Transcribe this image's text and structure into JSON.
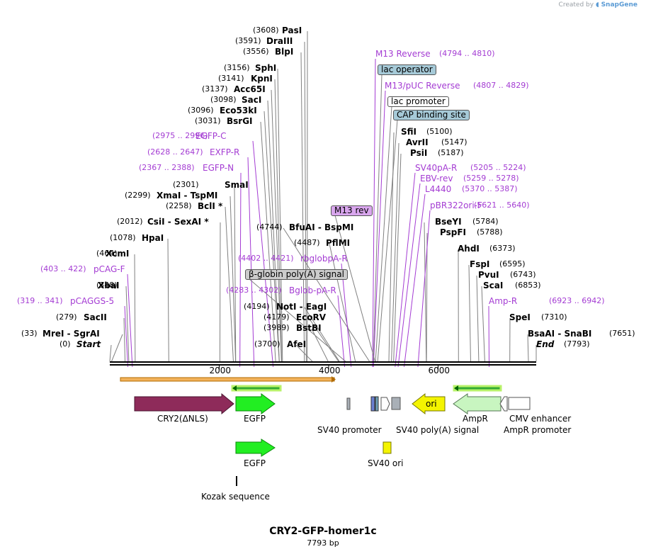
{
  "credit": {
    "prefix": "Created by",
    "brand": "SnapGene"
  },
  "map": {
    "title": "CRY2-GFP-homer1c",
    "length_label": "7793 bp",
    "length_bp": 7793,
    "ticks": [
      "2000",
      "4000",
      "6000"
    ],
    "colors": {
      "enzyme": "#000000",
      "primer": "#a43cd3",
      "cry2": "#8e2b5a",
      "egfp": "#22ee22",
      "ori": "#f4f400",
      "ampr": "#c8f5c0",
      "sv40ori": "#f4f400",
      "promoter_gray": "#a9b0b7",
      "lac_operator": "#a6cad8",
      "cap_site": "#a6cad8",
      "m13rev_badge": "#d9a6ee",
      "globin_badge": "#cccccc"
    }
  },
  "enzymes": [
    {
      "pos": "(3608)",
      "name": "PasI",
      "style": "b"
    },
    {
      "pos": "(3591)",
      "name": "DraIII",
      "style": "b"
    },
    {
      "pos": "(3556)",
      "name": "BlpI",
      "style": "b"
    },
    {
      "pos": "(3156)",
      "name": "SphI",
      "style": "b"
    },
    {
      "pos": "(3141)",
      "name": "KpnI",
      "style": "b"
    },
    {
      "pos": "(3137)",
      "name": "Acc65I",
      "style": "b"
    },
    {
      "pos": "(3098)",
      "name": "SacI",
      "style": "b"
    },
    {
      "pos": "(3096)",
      "name": "Eco53kI",
      "style": "b"
    },
    {
      "pos": "(3031)",
      "name": "BsrGI",
      "style": "b"
    },
    {
      "pos": "(2301)",
      "name": "SmaI",
      "style": "b"
    },
    {
      "pos": "(2299)",
      "name": "XmaI  -  TspMI",
      "style": "b"
    },
    {
      "pos": "(2258)",
      "name": "BclI *",
      "style": "b"
    },
    {
      "pos": "(2012)",
      "name": "CsiI  -  SexAI *",
      "style": "b"
    },
    {
      "pos": "(1078)",
      "name": "HpaI",
      "style": "b"
    },
    {
      "pos": "(464)",
      "name": "XcmI",
      "style": "b"
    },
    {
      "pos": "(348)",
      "name": "XbaI",
      "style": "b"
    },
    {
      "pos": "(279)",
      "name": "SacII",
      "style": "b"
    },
    {
      "pos": "(33)",
      "name": "MreI  -  SgrAI",
      "style": "b"
    },
    {
      "pos": "(0)",
      "name": "Start",
      "style": "bi"
    },
    {
      "pos": "(4744)",
      "name": "BfuAI  -  BspMI",
      "style": "b"
    },
    {
      "pos": "(4487)",
      "name": "PflMI",
      "style": "b"
    },
    {
      "pos": "(4194)",
      "name": "NotI  -  EagI",
      "style": "b"
    },
    {
      "pos": "(4179)",
      "name": "EcoRV",
      "style": "b"
    },
    {
      "pos": "(3989)",
      "name": "BstBI",
      "style": "b"
    },
    {
      "pos": "(3700)",
      "name": "AfeI",
      "style": "b"
    },
    {
      "pos": "(5100)",
      "name": "SfiI",
      "style": "b"
    },
    {
      "pos": "(5147)",
      "name": "AvrII",
      "style": "b"
    },
    {
      "pos": "(5187)",
      "name": "PsiI",
      "style": "b"
    },
    {
      "pos": "(5784)",
      "name": "BseYI",
      "style": "b"
    },
    {
      "pos": "(5788)",
      "name": "PspFI",
      "style": "b"
    },
    {
      "pos": "(6373)",
      "name": "AhdI",
      "style": "b"
    },
    {
      "pos": "(6595)",
      "name": "FspI",
      "style": "b"
    },
    {
      "pos": "(6743)",
      "name": "PvuI",
      "style": "b"
    },
    {
      "pos": "(6853)",
      "name": "ScaI",
      "style": "b"
    },
    {
      "pos": "(7310)",
      "name": "SpeI",
      "style": "b"
    },
    {
      "pos": "(7651)",
      "name": "BsaAI  -  SnaBI",
      "style": "b"
    },
    {
      "pos": "(7793)",
      "name": "End",
      "style": "bi"
    }
  ],
  "primers": [
    {
      "range": "(2975 .. 2996)",
      "name": "EGFP-C"
    },
    {
      "range": "(2628 .. 2647)",
      "name": "EXFP-R"
    },
    {
      "range": "(2367 .. 2388)",
      "name": "EGFP-N"
    },
    {
      "range": "(403 .. 422)",
      "name": "pCAG-F"
    },
    {
      "range": "(319 .. 341)",
      "name": "pCAGGS-5"
    },
    {
      "range": "(4402 .. 4421)",
      "name": "rbglobpA-R"
    },
    {
      "range": "(4283 .. 4302)",
      "name": "Bglob-pA-R"
    },
    {
      "range": "(4794 .. 4810)",
      "name": "M13 Reverse"
    },
    {
      "range": "(4807 .. 4829)",
      "name": "M13/pUC Reverse"
    },
    {
      "range": "(5205 .. 5224)",
      "name": "SV40pA-R"
    },
    {
      "range": "(5259 .. 5278)",
      "name": "EBV-rev"
    },
    {
      "range": "(5370 .. 5387)",
      "name": "L4440"
    },
    {
      "range": "(5621 .. 5640)",
      "name": "pBR322ori-F"
    },
    {
      "range": "(6923 .. 6942)",
      "name": "Amp-R"
    }
  ],
  "badges": [
    {
      "label": "M13 rev"
    },
    {
      "label": "lac operator"
    },
    {
      "label": "lac promoter"
    },
    {
      "label": "CAP binding site"
    },
    {
      "label": "β-globin poly(A) signal"
    }
  ],
  "features": [
    {
      "label": "CRY2(ΔNLS)"
    },
    {
      "label": "EGFP"
    },
    {
      "label": "SV40 promoter"
    },
    {
      "label": "SV40 poly(A) signal"
    },
    {
      "label": "ori"
    },
    {
      "label": "AmpR"
    },
    {
      "label": "CMV enhancer"
    },
    {
      "label": "AmpR promoter"
    },
    {
      "label": "EGFP"
    },
    {
      "label": "SV40 ori"
    },
    {
      "label": "Kozak sequence"
    }
  ]
}
